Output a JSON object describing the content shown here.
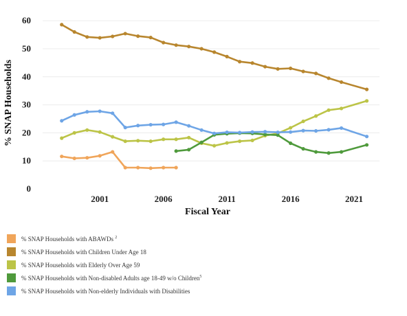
{
  "chart_data": {
    "type": "line",
    "xlabel": "Fiscal Year",
    "ylabel": "% SNAP Households",
    "xlim": [
      1996.5,
      2023
    ],
    "ylim": [
      0,
      62
    ],
    "xticks": [
      2001,
      2006,
      2011,
      2016,
      2021
    ],
    "yticks": [
      0,
      10,
      20,
      30,
      40,
      50,
      60
    ],
    "grid": "horizontal",
    "legend_position": "bottom-left",
    "series": [
      {
        "name": "% SNAP Households with ABAWDs",
        "name_sup": "2",
        "color": "#f0a55a",
        "x": [
          1998,
          1999,
          2000,
          2001,
          2002,
          2003,
          2004,
          2005,
          2006,
          2007
        ],
        "y": [
          11.6,
          10.9,
          11.1,
          11.8,
          13.2,
          7.6,
          7.6,
          7.4,
          7.6,
          7.6
        ]
      },
      {
        "name": "% SNAP Households with Children Under Age 18",
        "name_sup": "",
        "color": "#b8862e",
        "x": [
          1998,
          1999,
          2000,
          2001,
          2002,
          2003,
          2004,
          2005,
          2006,
          2007,
          2008,
          2009,
          2010,
          2011,
          2012,
          2013,
          2014,
          2015,
          2016,
          2017,
          2018,
          2019,
          2020,
          2022
        ],
        "y": [
          58.6,
          56.0,
          54.2,
          53.9,
          54.4,
          55.4,
          54.5,
          54.0,
          52.2,
          51.3,
          50.8,
          50.0,
          48.8,
          47.2,
          45.4,
          44.9,
          43.6,
          42.8,
          43.0,
          41.9,
          41.2,
          39.5,
          38.1,
          35.5
        ]
      },
      {
        "name": "% SNAP Households with Elderly Over Age 59",
        "name_sup": "",
        "color": "#bcc447",
        "x": [
          1998,
          1999,
          2000,
          2001,
          2002,
          2003,
          2004,
          2005,
          2006,
          2007,
          2008,
          2009,
          2010,
          2011,
          2012,
          2013,
          2014,
          2015,
          2016,
          2017,
          2018,
          2019,
          2020,
          2022
        ],
        "y": [
          18.1,
          20.0,
          21.0,
          20.3,
          18.6,
          17.0,
          17.2,
          17.0,
          17.7,
          17.7,
          18.3,
          16.3,
          15.4,
          16.4,
          17.0,
          17.3,
          19.0,
          19.8,
          21.8,
          24.1,
          26.0,
          28.1,
          28.7,
          31.4
        ]
      },
      {
        "name": "% SNAP Households with Non-disabled Adults age 18-49 w/o Children",
        "name_sup": "5",
        "color": "#4f9a3c",
        "x": [
          2007,
          2008,
          2009,
          2010,
          2011,
          2012,
          2013,
          2014,
          2015,
          2016,
          2017,
          2018,
          2019,
          2020,
          2022
        ],
        "y": [
          13.5,
          14.0,
          16.6,
          19.3,
          19.7,
          19.9,
          19.8,
          19.4,
          19.2,
          16.3,
          14.3,
          13.2,
          12.8,
          13.2,
          15.7
        ]
      },
      {
        "name": "% SNAP Households with Non-elderly Individuals with Disabilities",
        "name_sup": "",
        "color": "#6ea5e6",
        "x": [
          1998,
          1999,
          2000,
          2001,
          2002,
          2003,
          2004,
          2005,
          2006,
          2007,
          2008,
          2009,
          2010,
          2011,
          2012,
          2013,
          2014,
          2015,
          2016,
          2017,
          2018,
          2019,
          2020,
          2022
        ],
        "y": [
          24.3,
          26.4,
          27.5,
          27.7,
          27.0,
          21.9,
          22.6,
          22.9,
          23.0,
          23.8,
          22.5,
          21.0,
          19.8,
          20.2,
          20.1,
          20.3,
          20.4,
          20.2,
          20.3,
          20.8,
          20.7,
          21.1,
          21.7,
          18.7
        ]
      }
    ]
  }
}
